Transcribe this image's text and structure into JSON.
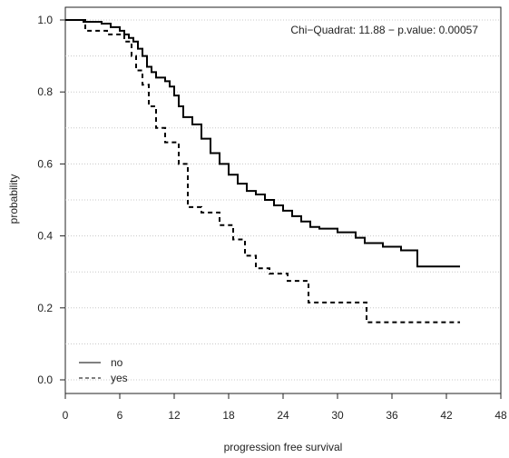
{
  "chart_data": {
    "type": "line",
    "xlabel": "progression free survival",
    "ylabel": "probability",
    "annotation": "Chi−Quadrat: 11.88  − p.value: 0.00057",
    "xlim": [
      0,
      48
    ],
    "ylim": [
      0,
      1
    ],
    "xticks": [
      "0",
      "6",
      "12",
      "18",
      "24",
      "30",
      "36",
      "42",
      "48"
    ],
    "yticks": [
      "0.0",
      "0.2",
      "0.4",
      "0.6",
      "0.8",
      "1.0"
    ],
    "grid": "horizontal dotted",
    "legend_position": "bottom-left",
    "step": true,
    "series": [
      {
        "name": "no",
        "linestyle": "solid",
        "x": [
          0,
          2,
          4,
          5,
          6,
          6.5,
          7,
          7.5,
          8,
          8.5,
          9,
          9.5,
          10,
          11,
          11.5,
          12,
          12.5,
          13,
          14,
          15,
          16,
          17,
          18,
          19,
          20,
          21,
          22,
          23,
          24,
          25,
          26,
          27,
          28,
          30,
          32,
          33,
          35,
          37,
          38.8,
          43.5
        ],
        "y": [
          1.0,
          0.995,
          0.99,
          0.98,
          0.97,
          0.96,
          0.95,
          0.94,
          0.92,
          0.9,
          0.87,
          0.855,
          0.84,
          0.83,
          0.815,
          0.79,
          0.76,
          0.73,
          0.71,
          0.67,
          0.63,
          0.6,
          0.57,
          0.545,
          0.525,
          0.515,
          0.5,
          0.485,
          0.47,
          0.455,
          0.44,
          0.425,
          0.42,
          0.41,
          0.395,
          0.38,
          0.37,
          0.36,
          0.315,
          0.315
        ]
      },
      {
        "name": "yes",
        "linestyle": "dashed",
        "x": [
          0,
          2.2,
          4.6,
          6.5,
          7.3,
          7.8,
          8.5,
          9.2,
          10,
          11,
          12.5,
          13.5,
          15,
          17,
          18.5,
          19.8,
          21,
          22.5,
          24.5,
          26.8,
          33.2,
          43.5
        ],
        "y": [
          1.0,
          0.97,
          0.96,
          0.94,
          0.9,
          0.86,
          0.82,
          0.76,
          0.7,
          0.66,
          0.6,
          0.48,
          0.465,
          0.43,
          0.39,
          0.345,
          0.31,
          0.295,
          0.275,
          0.215,
          0.16,
          0.16
        ]
      }
    ]
  }
}
